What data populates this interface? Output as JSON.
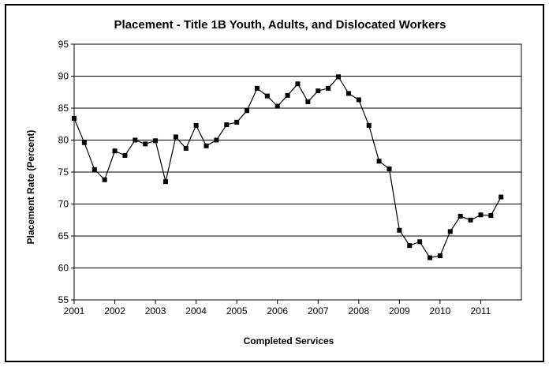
{
  "chart_data": {
    "type": "line",
    "title": "Placement - Title 1B Youth, Adults, and Dislocated Workers",
    "xlabel": "Completed Services",
    "ylabel": "Placement Rate (Percent)",
    "xlim": [
      2001,
      2012
    ],
    "ylim": [
      55,
      95
    ],
    "y_ticks": [
      55,
      60,
      65,
      70,
      75,
      80,
      85,
      90,
      95
    ],
    "x_ticks": [
      "2001",
      "2002",
      "2003",
      "2004",
      "2005",
      "2006",
      "2007",
      "2008",
      "2009",
      "2010",
      "2011"
    ],
    "grid": true,
    "legend": "none",
    "series": [
      {
        "color": "#000000",
        "marker": "square",
        "x": [
          2001.0,
          2001.25,
          2001.5,
          2001.75,
          2002.0,
          2002.25,
          2002.5,
          2002.75,
          2003.0,
          2003.25,
          2003.5,
          2003.75,
          2004.0,
          2004.25,
          2004.5,
          2004.75,
          2005.0,
          2005.25,
          2005.5,
          2005.75,
          2006.0,
          2006.25,
          2006.5,
          2006.75,
          2007.0,
          2007.25,
          2007.5,
          2007.75,
          2008.0,
          2008.25,
          2008.5,
          2008.75,
          2009.0,
          2009.25,
          2009.5,
          2009.75,
          2010.0,
          2010.25,
          2010.5,
          2010.75,
          2011.0,
          2011.25,
          2011.5
        ],
        "values": [
          83.4,
          79.6,
          75.4,
          73.8,
          78.3,
          77.6,
          80.0,
          79.4,
          79.9,
          73.5,
          80.5,
          78.7,
          82.3,
          79.1,
          80.0,
          82.4,
          82.8,
          84.6,
          88.1,
          86.9,
          85.3,
          87.0,
          88.8,
          86.0,
          87.7,
          88.1,
          89.9,
          87.3,
          86.3,
          82.3,
          76.7,
          75.5,
          65.9,
          63.5,
          64.1,
          61.6,
          61.9,
          65.7,
          68.1,
          67.5,
          68.3,
          68.2,
          71.1
        ]
      }
    ]
  }
}
